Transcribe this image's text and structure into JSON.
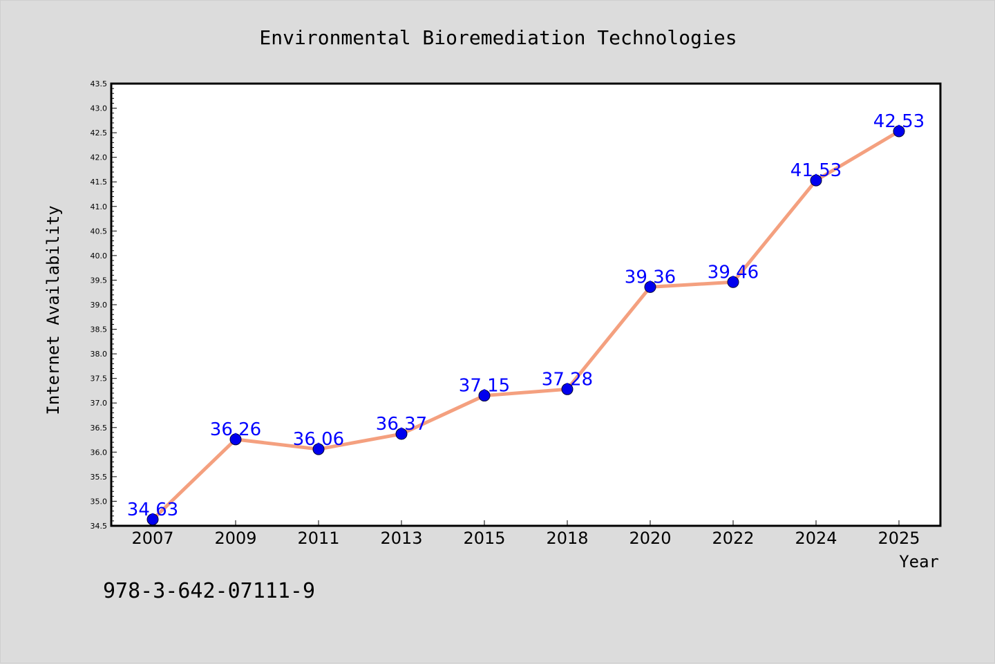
{
  "chart_data": {
    "type": "line",
    "title": "Environmental Bioremediation Technologies",
    "xlabel": "Year",
    "ylabel": "Internet Availability",
    "categories": [
      "2007",
      "2009",
      "2011",
      "2013",
      "2015",
      "2018",
      "2020",
      "2022",
      "2024",
      "2025"
    ],
    "series": [
      {
        "values": [
          34.63,
          36.26,
          36.06,
          36.37,
          37.15,
          37.28,
          39.36,
          39.46,
          41.53,
          42.53
        ],
        "labels": [
          "34.63",
          "36.26",
          "36.06",
          "36.37",
          "37.15",
          "37.28",
          "39.36",
          "39.46",
          "41.53",
          "42.53"
        ],
        "line_color": "#f4a07f",
        "marker_color": "#0000ee"
      }
    ],
    "ylim": [
      34.5,
      43.5
    ],
    "yticks": [
      "34.5",
      "35.0",
      "35.5",
      "36.0",
      "36.5",
      "37.0",
      "37.5",
      "38.0",
      "38.5",
      "39.0",
      "39.5",
      "40.0",
      "40.5",
      "41.0",
      "41.5",
      "42.0",
      "42.5",
      "43.0",
      "43.5"
    ],
    "grid": false,
    "data_label_color": "#0000ff"
  },
  "footer": {
    "isbn": "978-3-642-07111-9"
  },
  "colors": {
    "background": "#dcdcdc",
    "plot_background": "#ffffff",
    "axis": "#000000"
  }
}
